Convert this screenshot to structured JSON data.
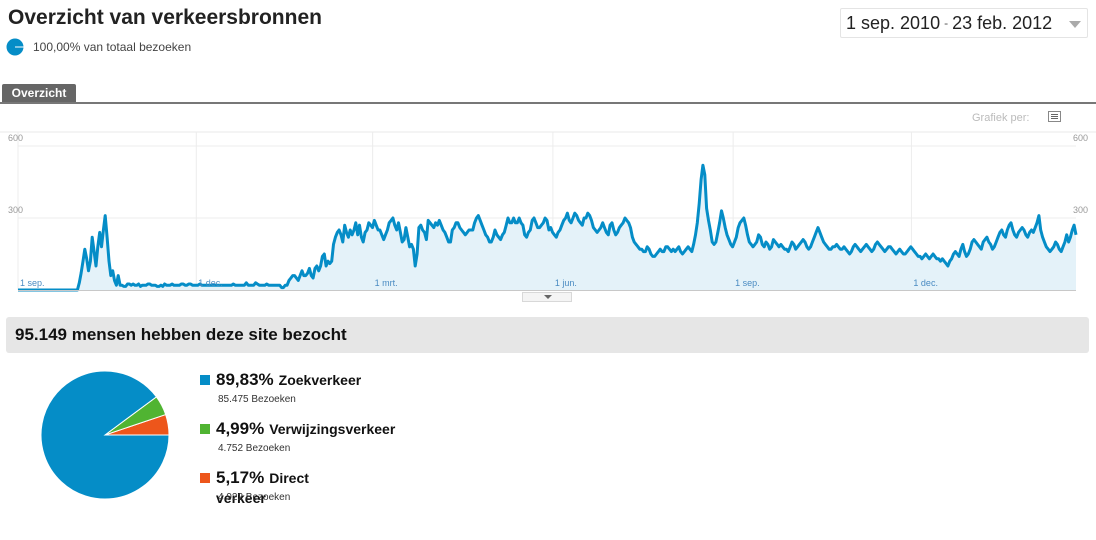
{
  "header": {
    "title": "Overzicht van verkeersbronnen",
    "segment_label": "100,00% van totaal bezoeken",
    "segment_color": "#058dc7"
  },
  "date_range": {
    "start": "1 sep. 2010",
    "separator": "-",
    "end": "23 feb. 2012"
  },
  "tabs": [
    {
      "label": "Overzicht",
      "active": true
    }
  ],
  "graph_options": {
    "label": "Grafiek per:",
    "icon": "list-icon"
  },
  "chart_data": [
    {
      "type": "area",
      "x_start": "2010-09-01",
      "x_end": "2012-02-23",
      "x_ticks": [
        "1 sep.",
        "1 dec.",
        "1 mrt.",
        "1 jun.",
        "1 sep.",
        "1 dec."
      ],
      "y_ticks_left": [
        "600",
        "300"
      ],
      "y_ticks_right": [
        "600",
        "300"
      ],
      "ylim": [
        0,
        600
      ],
      "grid": true,
      "color": "#058dc7",
      "fill_color": "#e4f2f9",
      "series": [
        {
          "values": [
            0,
            0,
            0,
            0,
            0,
            0,
            0,
            0,
            0,
            0,
            0,
            0,
            0,
            0,
            0,
            0,
            0,
            0,
            0,
            0,
            0,
            0,
            0,
            0,
            0,
            0,
            0,
            0,
            0,
            0,
            0,
            0,
            0,
            30,
            70,
            120,
            170,
            130,
            80,
            120,
            220,
            160,
            100,
            180,
            240,
            180,
            250,
            310,
            220,
            120,
            60,
            80,
            40,
            20,
            60,
            20,
            20,
            15,
            15,
            25,
            25,
            20,
            25,
            20,
            20,
            25,
            15,
            20,
            20,
            20,
            25,
            25,
            20,
            20,
            20,
            15,
            15,
            20,
            15,
            25,
            20,
            20,
            20,
            25,
            20,
            20,
            20,
            20,
            25,
            25,
            20,
            20,
            25,
            25,
            20,
            20,
            20,
            20,
            25,
            20,
            20,
            20,
            20,
            20,
            20,
            20,
            20,
            20,
            20,
            20,
            20,
            20,
            20,
            20,
            20,
            20,
            25,
            20,
            20,
            20,
            20,
            20,
            20,
            30,
            20,
            20,
            20,
            20,
            30,
            25,
            20,
            20,
            20,
            20,
            25,
            20,
            20,
            20,
            20,
            20,
            20,
            20,
            10,
            10,
            20,
            20,
            40,
            50,
            60,
            60,
            50,
            40,
            60,
            80,
            60,
            60,
            70,
            90,
            60,
            50,
            90,
            100,
            80,
            100,
            140,
            150,
            100,
            120,
            110,
            120,
            190,
            220,
            240,
            250,
            230,
            200,
            270,
            240,
            220,
            250,
            230,
            250,
            280,
            230,
            270,
            220,
            200,
            240,
            250,
            280,
            270,
            260,
            290,
            270,
            250,
            250,
            230,
            210,
            230,
            250,
            280,
            290,
            300,
            270,
            250,
            280,
            240,
            200,
            210,
            260,
            220,
            180,
            190,
            170,
            100,
            150,
            260,
            270,
            250,
            240,
            210,
            290,
            280,
            270,
            260,
            280,
            270,
            290,
            270,
            250,
            240,
            220,
            200,
            200,
            250,
            260,
            280,
            280,
            260,
            250,
            240,
            230,
            240,
            250,
            250,
            250,
            280,
            300,
            310,
            290,
            270,
            250,
            230,
            220,
            200,
            200,
            220,
            250,
            230,
            220,
            210,
            230,
            240,
            270,
            300,
            280,
            280,
            300,
            280,
            280,
            300,
            280,
            270,
            230,
            220,
            240,
            250,
            290,
            300,
            280,
            260,
            260,
            270,
            280,
            300,
            290,
            250,
            260,
            240,
            230,
            220,
            240,
            250,
            270,
            290,
            300,
            320,
            290,
            280,
            300,
            320,
            310,
            290,
            280,
            270,
            300,
            300,
            320,
            310,
            290,
            260,
            250,
            240,
            250,
            260,
            280,
            260,
            240,
            230,
            270,
            280,
            250,
            230,
            240,
            260,
            270,
            280,
            300,
            290,
            280,
            260,
            220,
            200,
            190,
            180,
            170,
            170,
            160,
            160,
            180,
            170,
            150,
            140,
            140,
            150,
            160,
            170,
            160,
            160,
            180,
            180,
            170,
            160,
            170,
            160,
            170,
            180,
            160,
            150,
            160,
            170,
            180,
            170,
            160,
            190,
            230,
            280,
            360,
            460,
            520,
            480,
            340,
            290,
            250,
            200,
            190,
            200,
            240,
            280,
            330,
            300,
            260,
            230,
            210,
            190,
            180,
            200,
            220,
            260,
            280,
            290,
            300,
            270,
            230,
            200,
            190,
            180,
            190,
            200,
            230,
            220,
            190,
            180,
            200,
            190,
            170,
            180,
            210,
            200,
            190,
            180,
            190,
            180,
            170,
            170,
            160,
            180,
            200,
            190,
            170,
            180,
            190,
            200,
            210,
            200,
            180,
            170,
            180,
            200,
            220,
            240,
            260,
            240,
            220,
            200,
            190,
            180,
            170,
            170,
            180,
            180,
            190,
            180,
            170,
            170,
            180,
            170,
            160,
            150,
            160,
            180,
            190,
            180,
            170,
            160,
            170,
            180,
            190,
            180,
            170,
            160,
            170,
            190,
            200,
            190,
            180,
            170,
            160,
            170,
            180,
            180,
            170,
            160,
            150,
            160,
            170,
            160,
            150,
            150,
            160,
            170,
            180,
            170,
            160,
            150,
            140,
            140,
            130,
            140,
            150,
            140,
            130,
            140,
            150,
            140,
            130,
            130,
            120,
            130,
            120,
            110,
            100,
            120,
            130,
            150,
            160,
            150,
            140,
            170,
            190,
            160,
            140,
            150,
            170,
            200,
            210,
            200,
            190,
            180,
            170,
            200,
            210,
            220,
            200,
            190,
            170,
            180,
            200,
            220,
            240,
            250,
            230,
            220,
            250,
            270,
            280,
            250,
            230,
            220,
            240,
            250,
            260,
            250,
            230,
            220,
            240,
            250,
            240,
            260,
            280,
            310,
            250,
            220,
            200,
            180,
            170,
            160,
            170,
            180,
            200,
            190,
            170,
            160,
            180,
            200,
            230,
            200,
            220,
            250,
            270,
            230
          ]
        }
      ]
    },
    {
      "type": "pie",
      "categories": [
        "Zoekverkeer",
        "Verwijzingsverkeer",
        "Direct verkeer"
      ],
      "values": [
        89.83,
        4.99,
        5.17
      ],
      "colors": [
        "#058dc7",
        "#50b432",
        "#ed561b"
      ]
    }
  ],
  "summary": {
    "title": "95.149 mensen hebben deze site bezocht"
  },
  "legend": [
    {
      "pct": "89,83%",
      "name": "Zoekverkeer",
      "visits": "85.475 Bezoeken",
      "color": "#058dc7"
    },
    {
      "pct": "4,99%",
      "name": "Verwijzingsverkeer",
      "visits": "4.752 Bezoeken",
      "color": "#50b432"
    },
    {
      "pct": "5,17%",
      "name": "Direct verkeer",
      "visits": "4.922 Bezoeken",
      "color": "#ed561b"
    }
  ]
}
